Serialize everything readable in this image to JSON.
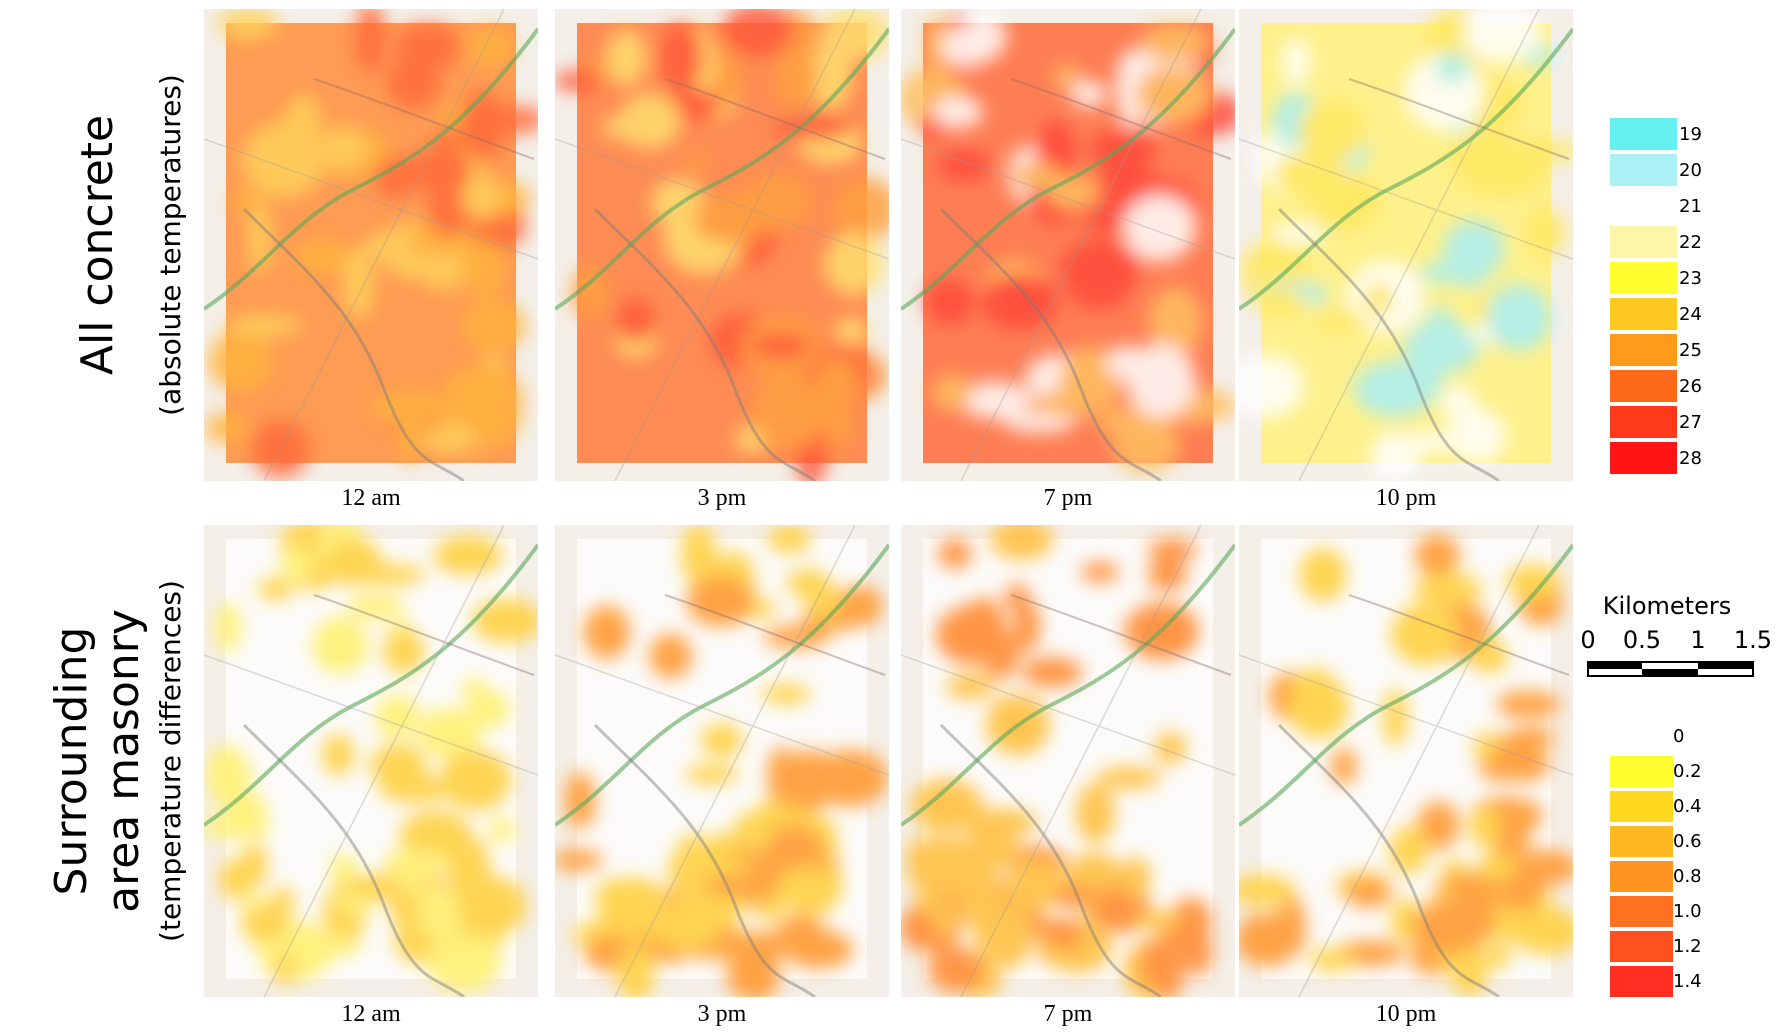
{
  "rows": [
    {
      "title": [
        "All concrete"
      ],
      "subtitle": "(absolute temperatures)",
      "panels": [
        "12 am",
        "3 pm",
        "7 pm",
        "10 pm"
      ]
    },
    {
      "title": [
        "Surrounding",
        "area masonry"
      ],
      "subtitle": "(temperature differences)",
      "panels": [
        "12 am",
        "3 pm",
        "7 pm",
        "10 pm"
      ]
    }
  ],
  "legend_top": {
    "labels": [
      "19",
      "20",
      "21",
      "22",
      "23",
      "24",
      "25",
      "26",
      "27",
      "28"
    ]
  },
  "scale_bar": {
    "title": "Kilometers",
    "labels": [
      "0",
      "0.5",
      "1",
      "1.5"
    ]
  },
  "legend_bottom": {
    "labels": [
      "0",
      "0.2",
      "0.4",
      "0.6",
      "0.8",
      "1.0",
      "1.2",
      "1.4"
    ]
  }
}
